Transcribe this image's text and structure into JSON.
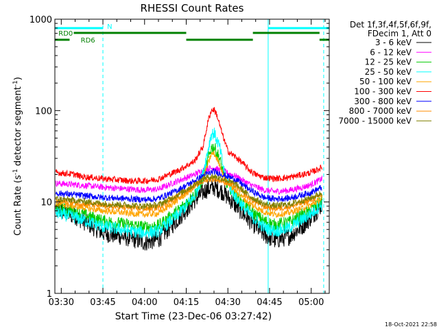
{
  "chart_data": {
    "type": "line",
    "title": "RHESSI Count Rates",
    "xlabel": "Start Time (23-Dec-06 03:27:42)",
    "ylabel_main": "Count Rate (s",
    "ylabel_exp": "-1",
    "ylabel_rest": " detector segment",
    "ylabel_close": ")",
    "yscale": "log",
    "ylim": [
      1,
      1000
    ],
    "xlim": [
      "03:27:42",
      "05:06:30"
    ],
    "y_ticks": [
      {
        "v": 1,
        "label": "1"
      },
      {
        "v": 10,
        "label": "10"
      },
      {
        "v": 100,
        "label": "100"
      },
      {
        "v": 1000,
        "label": "1000"
      }
    ],
    "x_ticks": [
      {
        "t": "03:30",
        "label": "03:30"
      },
      {
        "t": "03:45",
        "label": "03:45"
      },
      {
        "t": "04:00",
        "label": "04:00"
      },
      {
        "t": "04:15",
        "label": "04:15"
      },
      {
        "t": "04:30",
        "label": "04:30"
      },
      {
        "t": "04:45",
        "label": "04:45"
      },
      {
        "t": "05:00",
        "label": "05:00"
      }
    ],
    "legend_header": [
      "Det 1f,3f,4f,5f,6f,9f,",
      "FDecim 1, Att 0"
    ],
    "legend_position": "right",
    "series": [
      {
        "name": "3 - 6 keV",
        "color": "#000000",
        "points": [
          [
            "03:28",
            8.3
          ],
          [
            "03:35",
            7.0
          ],
          [
            "03:45",
            4.6
          ],
          [
            "03:55",
            4.0
          ],
          [
            "04:00",
            3.6
          ],
          [
            "04:05",
            3.9
          ],
          [
            "04:12",
            6.5
          ],
          [
            "04:18",
            10.5
          ],
          [
            "04:22",
            13.5
          ],
          [
            "04:25",
            14.5
          ],
          [
            "04:28",
            13.0
          ],
          [
            "04:33",
            9.0
          ],
          [
            "04:38",
            6.2
          ],
          [
            "04:43",
            4.4
          ],
          [
            "04:47",
            3.8
          ],
          [
            "04:52",
            4.2
          ],
          [
            "04:57",
            5.5
          ],
          [
            "05:00",
            6.8
          ],
          [
            "05:04",
            9.5
          ]
        ]
      },
      {
        "name": "6 - 12 keV",
        "color": "#ff00ff",
        "points": [
          [
            "03:28",
            16
          ],
          [
            "03:35",
            15.5
          ],
          [
            "03:45",
            14.5
          ],
          [
            "03:55",
            13.8
          ],
          [
            "04:00",
            13.5
          ],
          [
            "04:05",
            13.8
          ],
          [
            "04:12",
            17
          ],
          [
            "04:18",
            20
          ],
          [
            "04:22",
            23
          ],
          [
            "04:25",
            23.5
          ],
          [
            "04:28",
            22
          ],
          [
            "04:33",
            19
          ],
          [
            "04:38",
            15.5
          ],
          [
            "04:43",
            13.5
          ],
          [
            "04:47",
            13.0
          ],
          [
            "04:52",
            13.4
          ],
          [
            "04:57",
            14.5
          ],
          [
            "05:00",
            15.5
          ],
          [
            "05:04",
            18
          ]
        ]
      },
      {
        "name": "12 - 25 keV",
        "color": "#00cc00",
        "points": [
          [
            "03:28",
            8.6
          ],
          [
            "03:35",
            7.8
          ],
          [
            "03:45",
            6.2
          ],
          [
            "03:55",
            5.6
          ],
          [
            "04:00",
            5.3
          ],
          [
            "04:05",
            5.5
          ],
          [
            "04:12",
            8
          ],
          [
            "04:18",
            12
          ],
          [
            "04:21",
            18
          ],
          [
            "04:24",
            39
          ],
          [
            "04:25",
            40
          ],
          [
            "04:27",
            30
          ],
          [
            "04:29",
            17
          ],
          [
            "04:33",
            11.5
          ],
          [
            "04:38",
            8
          ],
          [
            "04:43",
            6.2
          ],
          [
            "04:47",
            5.6
          ],
          [
            "04:52",
            6
          ],
          [
            "04:57",
            7.2
          ],
          [
            "05:00",
            8.2
          ],
          [
            "05:04",
            10.5
          ]
        ]
      },
      {
        "name": "25 - 50 keV",
        "color": "#00ffff",
        "points": [
          [
            "03:28",
            7.6
          ],
          [
            "03:35",
            6.8
          ],
          [
            "03:45",
            5.4
          ],
          [
            "03:55",
            4.8
          ],
          [
            "04:00",
            4.6
          ],
          [
            "04:05",
            4.8
          ],
          [
            "04:12",
            7.2
          ],
          [
            "04:18",
            11.5
          ],
          [
            "04:21",
            20
          ],
          [
            "04:24",
            55
          ],
          [
            "04:25",
            57
          ],
          [
            "04:27",
            40
          ],
          [
            "04:29",
            19
          ],
          [
            "04:33",
            11
          ],
          [
            "04:38",
            7.2
          ],
          [
            "04:43",
            5.3
          ],
          [
            "04:47",
            4.8
          ],
          [
            "04:52",
            5.2
          ],
          [
            "04:57",
            6.5
          ],
          [
            "05:00",
            7.5
          ],
          [
            "05:04",
            9.5
          ]
        ]
      },
      {
        "name": "50 - 100 keV",
        "color": "#ffa500",
        "points": [
          [
            "03:28",
            9.5
          ],
          [
            "03:35",
            9.0
          ],
          [
            "03:45",
            8.0
          ],
          [
            "03:55",
            7.5
          ],
          [
            "04:00",
            7.3
          ],
          [
            "04:05",
            7.5
          ],
          [
            "04:12",
            10.5
          ],
          [
            "04:18",
            14.5
          ],
          [
            "04:21",
            18
          ],
          [
            "04:24",
            33
          ],
          [
            "04:25",
            34
          ],
          [
            "04:27",
            26
          ],
          [
            "04:29",
            17.5
          ],
          [
            "04:33",
            13
          ],
          [
            "04:38",
            9.5
          ],
          [
            "04:43",
            7.8
          ],
          [
            "04:47",
            7.3
          ],
          [
            "04:52",
            7.6
          ],
          [
            "04:57",
            8.6
          ],
          [
            "05:00",
            9.3
          ],
          [
            "05:04",
            11
          ]
        ]
      },
      {
        "name": "100 - 300 keV",
        "color": "#ff0000",
        "points": [
          [
            "03:28",
            21
          ],
          [
            "03:35",
            20
          ],
          [
            "03:37",
            19
          ],
          [
            "03:45",
            18
          ],
          [
            "03:55",
            17
          ],
          [
            "04:00",
            17
          ],
          [
            "04:05",
            17.8
          ],
          [
            "04:12",
            22
          ],
          [
            "04:18",
            28
          ],
          [
            "04:21",
            40
          ],
          [
            "04:23",
            80
          ],
          [
            "04:24",
            100
          ],
          [
            "04:25",
            103
          ],
          [
            "04:26",
            90
          ],
          [
            "04:28",
            55
          ],
          [
            "04:30",
            36
          ],
          [
            "04:34",
            29
          ],
          [
            "04:38",
            22
          ],
          [
            "04:40",
            20
          ],
          [
            "04:43",
            18.5
          ],
          [
            "04:47",
            18
          ],
          [
            "04:52",
            18.5
          ],
          [
            "04:57",
            20
          ],
          [
            "05:00",
            21
          ],
          [
            "05:04",
            24
          ]
        ]
      },
      {
        "name": "300 - 800 keV",
        "color": "#0000ff",
        "points": [
          [
            "03:28",
            12.5
          ],
          [
            "03:35",
            12
          ],
          [
            "03:45",
            11.2
          ],
          [
            "03:55",
            10.8
          ],
          [
            "04:00",
            10.6
          ],
          [
            "04:05",
            10.9
          ],
          [
            "04:12",
            13.5
          ],
          [
            "04:18",
            17
          ],
          [
            "04:22",
            20
          ],
          [
            "04:25",
            21.5
          ],
          [
            "04:28",
            20
          ],
          [
            "04:33",
            17.5
          ],
          [
            "04:38",
            13.5
          ],
          [
            "04:43",
            11.2
          ],
          [
            "04:47",
            10.8
          ],
          [
            "04:52",
            11.0
          ],
          [
            "04:57",
            12.0
          ],
          [
            "05:00",
            12.8
          ],
          [
            "05:04",
            14.5
          ]
        ]
      },
      {
        "name": "800 - 7000 keV",
        "color": "#ff8c00",
        "points": [
          [
            "03:28",
            10.2
          ],
          [
            "03:35",
            9.8
          ],
          [
            "03:45",
            9.0
          ],
          [
            "03:55",
            8.6
          ],
          [
            "04:00",
            8.4
          ],
          [
            "04:05",
            8.7
          ],
          [
            "04:12",
            11.5
          ],
          [
            "04:18",
            15
          ],
          [
            "04:22",
            17.5
          ],
          [
            "04:25",
            18
          ],
          [
            "04:28",
            17
          ],
          [
            "04:33",
            14.5
          ],
          [
            "04:38",
            10.8
          ],
          [
            "04:43",
            8.9
          ],
          [
            "04:47",
            8.5
          ],
          [
            "04:52",
            8.8
          ],
          [
            "04:57",
            9.8
          ],
          [
            "05:00",
            10.5
          ],
          [
            "05:04",
            12.0
          ]
        ]
      },
      {
        "name": "7000 - 15000 keV",
        "color": "#808000",
        "points": [
          [
            "03:28",
            10.8
          ],
          [
            "03:35",
            10.4
          ],
          [
            "03:45",
            9.6
          ],
          [
            "03:55",
            9.2
          ],
          [
            "04:00",
            9.0
          ],
          [
            "04:05",
            9.3
          ],
          [
            "04:12",
            12.0
          ],
          [
            "04:18",
            15.5
          ],
          [
            "04:22",
            18.5
          ],
          [
            "04:25",
            19
          ],
          [
            "04:28",
            18
          ],
          [
            "04:33",
            15.5
          ],
          [
            "04:38",
            11.5
          ],
          [
            "04:43",
            9.5
          ],
          [
            "04:47",
            9.1
          ],
          [
            "04:52",
            9.4
          ],
          [
            "04:57",
            10.4
          ],
          [
            "05:00",
            11.1
          ],
          [
            "05:04",
            12.6
          ]
        ]
      }
    ],
    "bars": [
      {
        "label": "N",
        "color": "#00ffff",
        "segments": [
          [
            "03:27:42",
            "03:45:00"
          ],
          [
            "04:44:30",
            "05:06:30"
          ]
        ],
        "label_at": "03:46:30",
        "row": "top"
      },
      {
        "label": "RD0",
        "color": "#008000",
        "segments": [
          [
            "03:34:30",
            "04:15:00"
          ],
          [
            "04:39:00",
            "05:03:00"
          ]
        ],
        "label_at": "03:29:00",
        "row": "middle"
      },
      {
        "label": "RD6",
        "color": "#008000",
        "segments": [
          [
            "03:27:42",
            "03:33:00"
          ],
          [
            "04:15:00",
            "04:39:00"
          ],
          [
            "05:03:00",
            "05:06:30"
          ]
        ],
        "label_at": "03:37:00",
        "row": "bottom"
      }
    ],
    "vlines": [
      {
        "t": "03:27:42",
        "style": "solid",
        "color": "#00ffff"
      },
      {
        "t": "03:45:00",
        "style": "dashed",
        "color": "#00ffff"
      },
      {
        "t": "04:44:30",
        "style": "solid",
        "color": "#00ffff"
      },
      {
        "t": "05:04:30",
        "style": "dashed",
        "color": "#00ffff"
      }
    ],
    "timestamp": "18-Oct-2021 22:58"
  }
}
